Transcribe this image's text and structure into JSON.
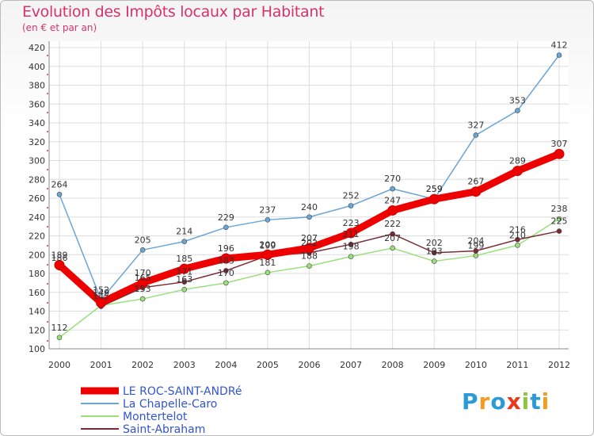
{
  "chart_data": {
    "type": "line",
    "title": "Evolution des Impôts locaux par Habitant",
    "subtitle": "(en € et par an)",
    "xlabel": "",
    "ylabel": "",
    "ylim": [
      100,
      420
    ],
    "yticks": [
      100,
      120,
      140,
      160,
      180,
      200,
      220,
      240,
      260,
      280,
      300,
      320,
      340,
      360,
      380,
      400,
      420
    ],
    "x": [
      "2000",
      "2001",
      "2002",
      "2003",
      "2004",
      "2005",
      "2006",
      "2007",
      "2008",
      "2009",
      "2010",
      "2011",
      "2012"
    ],
    "series": [
      {
        "name": "LE ROC-SAINT-ANDRé",
        "color": "#ee0000",
        "values": [
          189,
          149,
          170,
          185,
          196,
          200,
          207,
          223,
          247,
          259,
          267,
          289,
          307
        ]
      },
      {
        "name": "La Chapelle-Caro",
        "color": "#6aa6d6",
        "values": [
          264,
          152,
          205,
          214,
          229,
          237,
          240,
          252,
          270,
          259,
          327,
          353,
          412
        ]
      },
      {
        "name": "Montertelot",
        "color": "#99e07a",
        "values": [
          112,
          146,
          153,
          163,
          170,
          181,
          188,
          198,
          207,
          193,
          199,
          210,
          238
        ]
      },
      {
        "name": "Saint-Abraham",
        "color": "#7a2b35",
        "values": [
          186,
          145,
          165,
          171,
          183,
          199,
          202,
          211,
          222,
          202,
          204,
          216,
          225
        ]
      }
    ],
    "value_labels": [
      [
        "189",
        "149",
        "170",
        "185",
        "196",
        "200",
        "207",
        "223",
        "247",
        "259",
        "267",
        "289",
        "307"
      ],
      [
        "264",
        "152",
        "205",
        "214",
        "229",
        "237",
        "240",
        "252",
        "270",
        "259",
        "327",
        "353",
        "412"
      ],
      [
        "112",
        "",
        "153",
        "163",
        "170",
        "181",
        "188",
        "198",
        "207",
        "193",
        "199",
        "210",
        "238"
      ],
      [
        "186",
        "145",
        "165",
        "171",
        "183",
        "199",
        "202",
        "211",
        "222",
        "202",
        "204",
        "216",
        "225"
      ]
    ],
    "legend_position": "bottom-left"
  },
  "logo": {
    "letters": [
      "P",
      "r",
      "o",
      "x",
      "i",
      "t",
      "i"
    ],
    "colors": [
      "#2a9bd6",
      "#f59b1d",
      "#2a9bd6",
      "#e8391e",
      "#8cc63f",
      "#2a9bd6",
      "#f59b1d"
    ]
  }
}
